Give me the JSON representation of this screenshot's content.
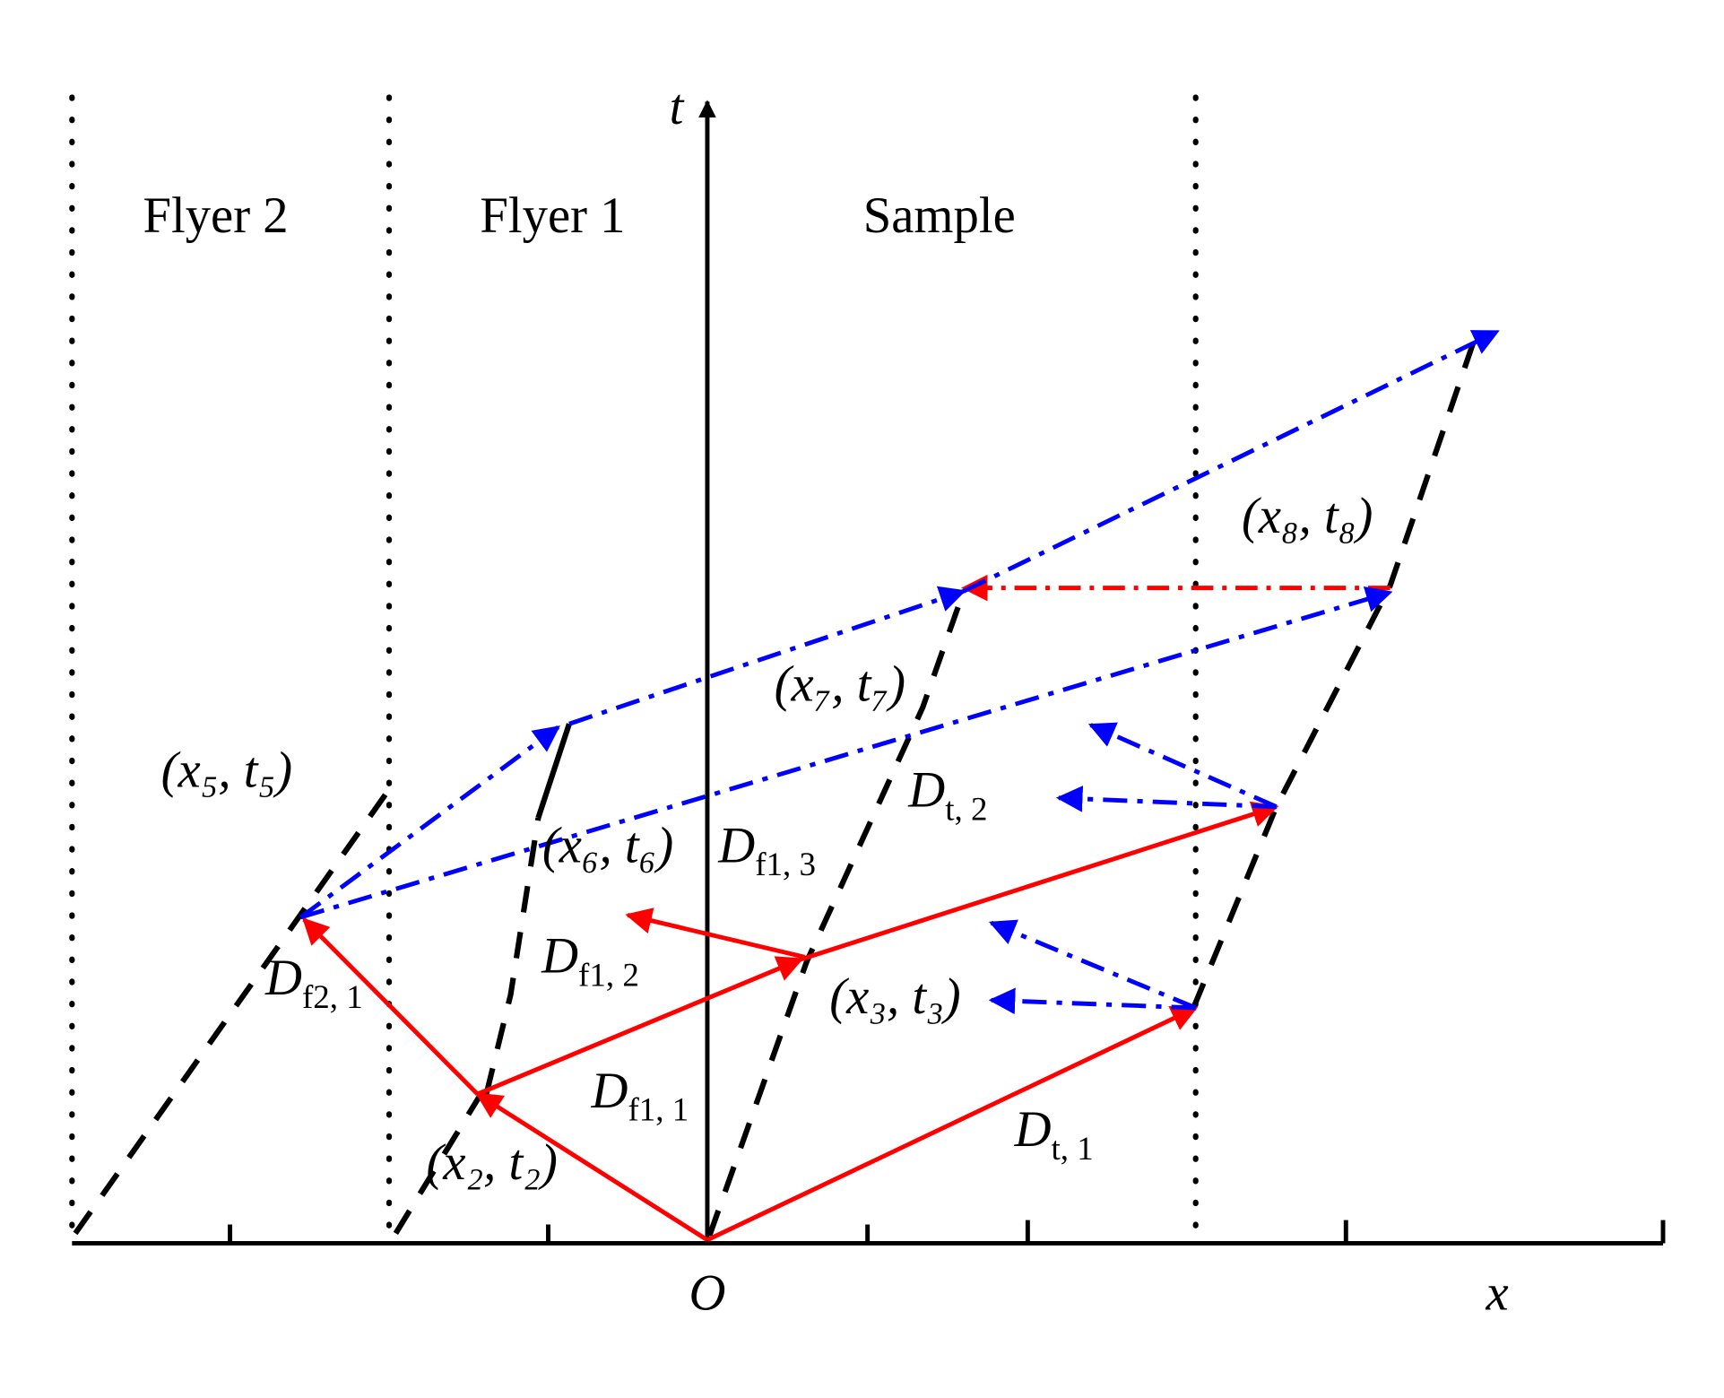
{
  "regions": [
    "Flyer 2",
    "Flyer 1",
    "Sample"
  ],
  "axes": {
    "t": "t",
    "origin": "O",
    "x": "x"
  },
  "points": [
    "(x₅, t₅)",
    "(x₆, t₆)",
    "(x₇, t₇)",
    "(x₈, t₈)",
    "(x₃, t₃)",
    "(x₂, t₂)"
  ],
  "waves": [
    {
      "symbol": "D",
      "subscript": "f2, 1"
    },
    {
      "symbol": "D",
      "subscript": "f1, 2"
    },
    {
      "symbol": "D",
      "subscript": "f1, 3"
    },
    {
      "symbol": "D",
      "subscript": "f1, 1"
    },
    {
      "symbol": "D",
      "subscript": "t, 1"
    },
    {
      "symbol": "D",
      "subscript": "t, 2"
    }
  ]
}
